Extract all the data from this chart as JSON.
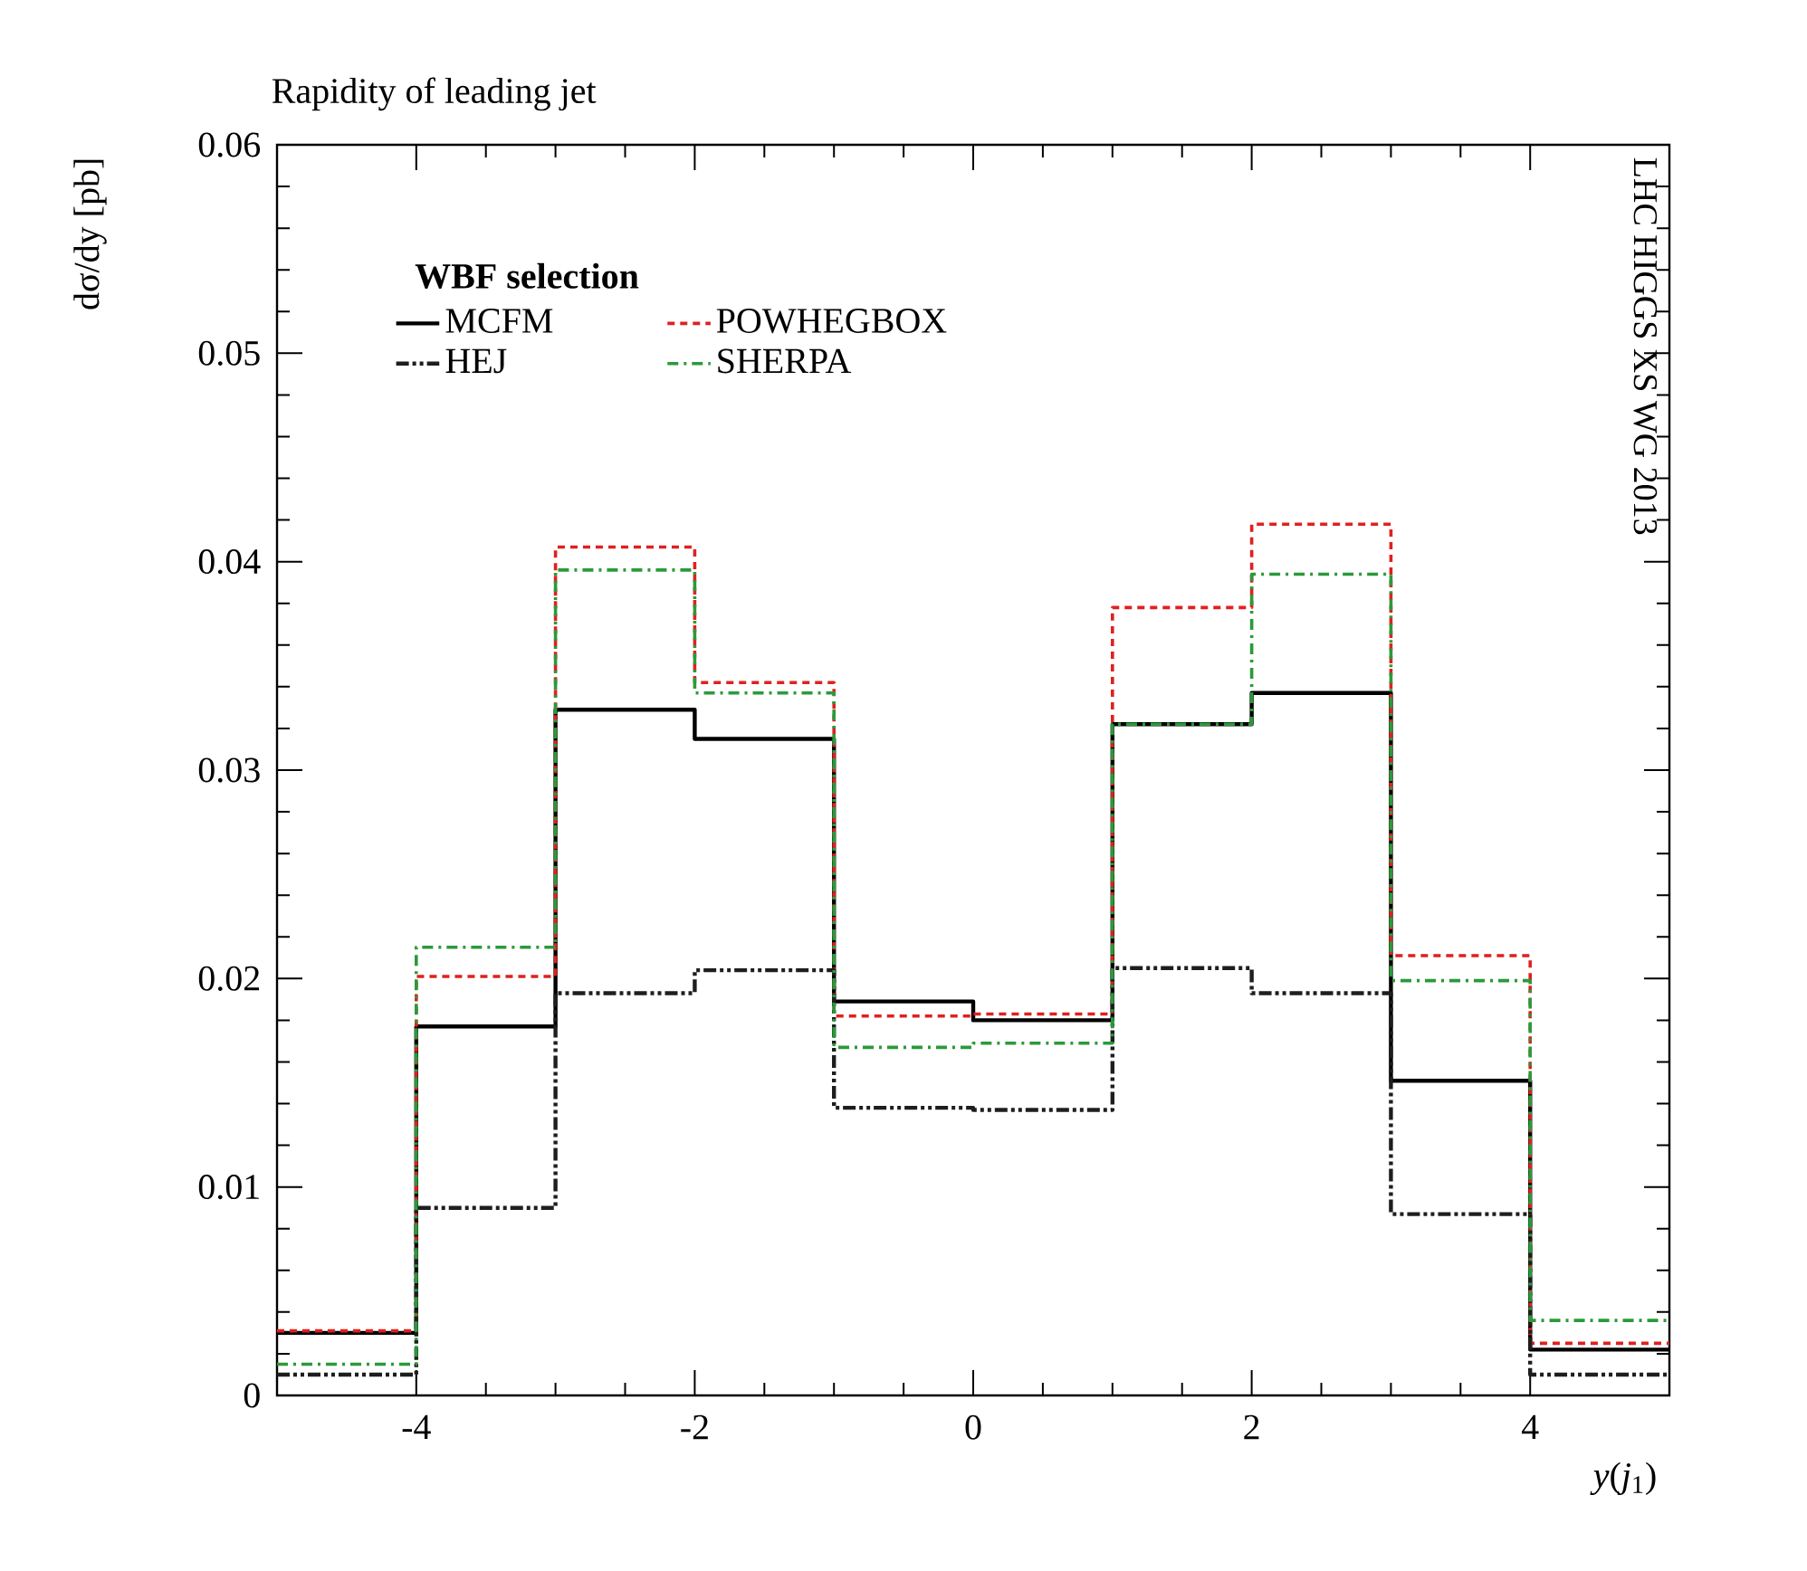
{
  "chart_data": {
    "type": "histogram",
    "title": "Rapidity of leading jet",
    "xlabel": "*y*(*j*$_{1}$)",
    "ylabel": "dσ/dy [pb]",
    "legend_title": "WBF selection",
    "annotations": [
      "LHC HIGGS XS WG 2013"
    ],
    "bins": [
      -5,
      -4,
      -3,
      -2,
      -1,
      0,
      1,
      2,
      3,
      4,
      5
    ],
    "series": [
      {
        "name": "MCFM",
        "color": "#000000",
        "line_style": "solid",
        "values": [
          0.003,
          0.0177,
          0.0329,
          0.0315,
          0.0189,
          0.018,
          0.0322,
          0.0337,
          0.0151,
          0.0022
        ]
      },
      {
        "name": "POWHEGBOX",
        "color": "#e02020",
        "line_style": "dashed",
        "values": [
          0.0031,
          0.0201,
          0.0407,
          0.0342,
          0.0182,
          0.0183,
          0.0378,
          0.0418,
          0.0211,
          0.0025
        ]
      },
      {
        "name": "HEJ",
        "color": "#1e1e1e",
        "line_style": "dashdotdotted",
        "values": [
          0.001,
          0.009,
          0.0193,
          0.0204,
          0.0138,
          0.0137,
          0.0205,
          0.0193,
          0.0087,
          0.001
        ]
      },
      {
        "name": "SHERPA",
        "color": "#2a9a3a",
        "line_style": "dashdotted",
        "values": [
          0.0015,
          0.0215,
          0.0396,
          0.0337,
          0.0167,
          0.0169,
          0.0322,
          0.0394,
          0.0199,
          0.0036
        ]
      }
    ],
    "xlim": [
      -5,
      5
    ],
    "ylim": [
      0,
      0.06
    ],
    "xticks": [
      -4,
      -2,
      0,
      2,
      4
    ],
    "yticks": [
      0,
      0.01,
      0.02,
      0.03,
      0.04,
      0.05,
      0.06
    ],
    "grid": false,
    "legend": "top left"
  }
}
